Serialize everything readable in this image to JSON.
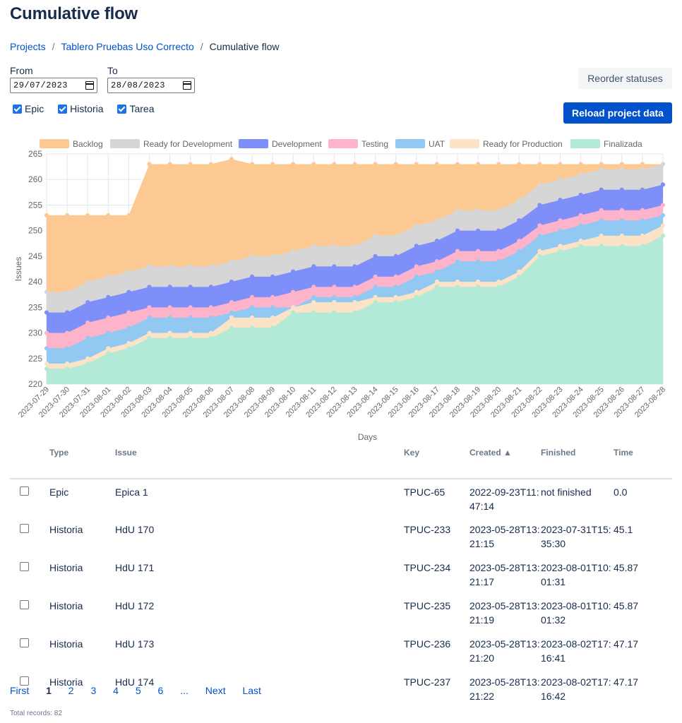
{
  "page": {
    "title": "Cumulative flow"
  },
  "breadcrumb": {
    "projects": "Projects",
    "board": "Tablero Pruebas Uso Correcto",
    "current": "Cumulative flow"
  },
  "filters": {
    "from_label": "From",
    "from_value": "29/07/2023",
    "to_label": "To",
    "to_value": "28/08/2023",
    "types": [
      {
        "label": "Epic",
        "checked": true
      },
      {
        "label": "Historia",
        "checked": true
      },
      {
        "label": "Tarea",
        "checked": true
      }
    ]
  },
  "buttons": {
    "reorder": "Reorder statuses",
    "reload": "Reload project data"
  },
  "chart_data": {
    "type": "area",
    "xlabel": "Days",
    "ylabel": "Issues",
    "ylim": [
      220,
      265
    ],
    "yticks": [
      220,
      225,
      230,
      235,
      240,
      245,
      250,
      255,
      260,
      265
    ],
    "legend_position": "top",
    "x": [
      "2023-07-29",
      "2023-07-30",
      "2023-07-31",
      "2023-08-01",
      "2023-08-02",
      "2023-08-03",
      "2023-08-04",
      "2023-08-05",
      "2023-08-06",
      "2023-08-07",
      "2023-08-08",
      "2023-08-09",
      "2023-08-10",
      "2023-08-11",
      "2023-08-12",
      "2023-08-13",
      "2023-08-14",
      "2023-08-15",
      "2023-08-16",
      "2023-08-17",
      "2023-08-18",
      "2023-08-19",
      "2023-08-20",
      "2023-08-21",
      "2023-08-22",
      "2023-08-23",
      "2023-08-24",
      "2023-08-25",
      "2023-08-26",
      "2023-08-27",
      "2023-08-28"
    ],
    "series": [
      {
        "name": "Backlog",
        "color": "#fdc992",
        "values": [
          253,
          253,
          253,
          253,
          253,
          263,
          263,
          263,
          263,
          264,
          263,
          263,
          263,
          263,
          263,
          263,
          263,
          263,
          263,
          263,
          263,
          263,
          263,
          263,
          263,
          263,
          263,
          263,
          263,
          263,
          263
        ]
      },
      {
        "name": "Ready for Development",
        "color": "#d6d6d6",
        "values": [
          238,
          238,
          240,
          241,
          242,
          243,
          243,
          243,
          243,
          244,
          245,
          245,
          246,
          247,
          247,
          247,
          249,
          249,
          251,
          252,
          254,
          254,
          254,
          256,
          259,
          260,
          261,
          262,
          262,
          262,
          263
        ]
      },
      {
        "name": "Development",
        "color": "#7f8ff9",
        "values": [
          234,
          234,
          236,
          237,
          238,
          239,
          239,
          239,
          239,
          240,
          241,
          241,
          242,
          243,
          243,
          243,
          245,
          245,
          247,
          248,
          250,
          250,
          250,
          252,
          255,
          256,
          257,
          258,
          258,
          258,
          259
        ]
      },
      {
        "name": "Testing",
        "color": "#fdb3c9",
        "values": [
          230,
          230,
          232,
          233,
          234,
          235,
          235,
          235,
          235,
          236,
          237,
          237,
          238,
          239,
          239,
          239,
          241,
          241,
          243,
          244,
          246,
          246,
          246,
          248,
          251,
          252,
          253,
          254,
          254,
          254,
          255
        ]
      },
      {
        "name": "UAT",
        "color": "#92c9f2",
        "values": [
          227,
          227,
          229,
          230,
          231,
          233,
          233,
          233,
          233,
          234,
          235,
          235,
          235,
          237,
          237,
          237,
          239,
          239,
          241,
          242,
          244,
          244,
          244,
          246,
          249,
          250,
          251,
          252,
          252,
          252,
          253
        ]
      },
      {
        "name": "Ready for Production",
        "color": "#fde3c6",
        "values": [
          224,
          224,
          225,
          227,
          228,
          230,
          230,
          230,
          230,
          233,
          233,
          233,
          235,
          236,
          236,
          236,
          237,
          237,
          238,
          240,
          240,
          240,
          240,
          242,
          246,
          247,
          248,
          249,
          249,
          249,
          251
        ]
      },
      {
        "name": "Finalizada",
        "color": "#b3ead7",
        "values": [
          223,
          223,
          224,
          226,
          227,
          229,
          229,
          229,
          229,
          231,
          231,
          231,
          234,
          234,
          234,
          234,
          236,
          236,
          237,
          239,
          239,
          239,
          239,
          241,
          245,
          246,
          247,
          247,
          247,
          247,
          249
        ]
      }
    ]
  },
  "table": {
    "headers": {
      "type": "Type",
      "issue": "Issue",
      "key": "Key",
      "created": "Created ▲",
      "finished": "Finished",
      "time": "Time"
    },
    "rows": [
      {
        "type": "Epic",
        "issue": "Epica 1",
        "key": "TPUC-65",
        "created": "2022-09-23T11:47:14",
        "finished": "not finished",
        "time": "0.0"
      },
      {
        "type": "Historia",
        "issue": "HdU 170",
        "key": "TPUC-233",
        "created": "2023-05-28T13:21:15",
        "finished": "2023-07-31T15:35:30",
        "time": "45.1"
      },
      {
        "type": "Historia",
        "issue": "HdU 171",
        "key": "TPUC-234",
        "created": "2023-05-28T13:21:17",
        "finished": "2023-08-01T10:01:31",
        "time": "45.87"
      },
      {
        "type": "Historia",
        "issue": "HdU 172",
        "key": "TPUC-235",
        "created": "2023-05-28T13:21:19",
        "finished": "2023-08-01T10:01:32",
        "time": "45.87"
      },
      {
        "type": "Historia",
        "issue": "HdU 173",
        "key": "TPUC-236",
        "created": "2023-05-28T13:21:20",
        "finished": "2023-08-02T17:16:41",
        "time": "47.17"
      },
      {
        "type": "Historia",
        "issue": "HdU 174",
        "key": "TPUC-237",
        "created": "2023-05-28T13:21:22",
        "finished": "2023-08-02T17:16:42",
        "time": "47.17"
      }
    ]
  },
  "pagination": {
    "first": "First",
    "pages": [
      "1",
      "2",
      "3",
      "4",
      "5",
      "6"
    ],
    "current": "1",
    "ellipsis": "...",
    "next": "Next",
    "last": "Last"
  },
  "footer": {
    "total": "Total records: 82"
  }
}
